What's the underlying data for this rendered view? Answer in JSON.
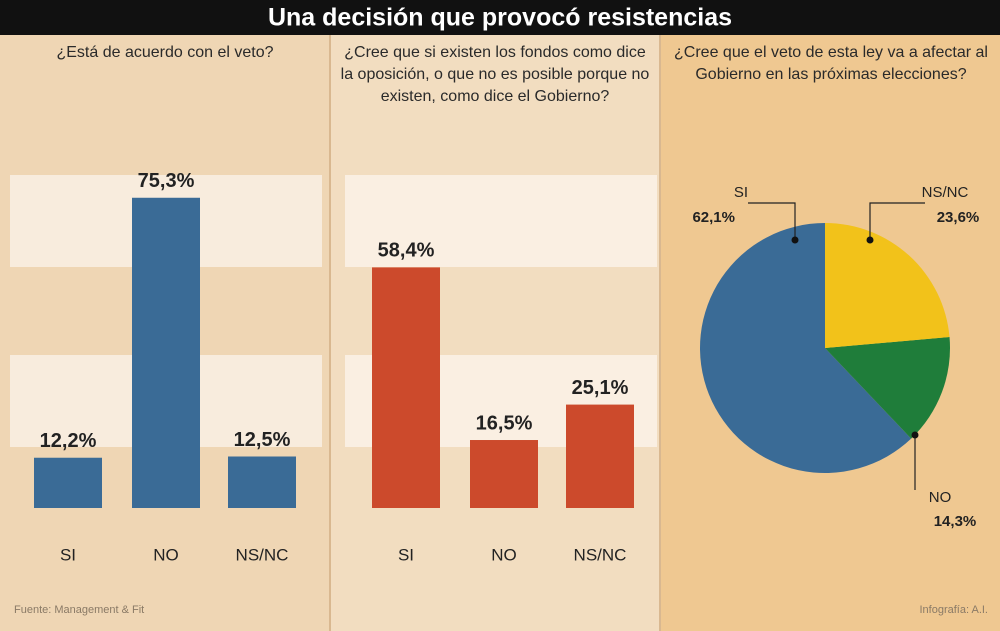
{
  "title": "Una decisión que provocó resistencias",
  "source": "Fuente: Management & Fit",
  "credit": "Infografía: A.I.",
  "chart_data": [
    {
      "type": "bar",
      "title": "¿Está de acuerdo con el veto?",
      "categories": [
        "SI",
        "NO",
        "NS/NC"
      ],
      "values": [
        12.2,
        75.3,
        12.5
      ],
      "value_labels": [
        "12,2%",
        "75,3%",
        "12,5%"
      ],
      "color": "#3a6b96"
    },
    {
      "type": "bar",
      "title": "¿Cree que si existen los fondos como dice la oposición, o que no es posible porque no existen, como dice el Gobierno?",
      "categories": [
        "SI",
        "NO",
        "NS/NC"
      ],
      "values": [
        58.4,
        16.5,
        25.1
      ],
      "value_labels": [
        "58,4%",
        "16,5%",
        "25,1%"
      ],
      "color": "#cc4a2c"
    },
    {
      "type": "pie",
      "title": "¿Cree que el veto de esta ley va a afectar al Gobierno en las próximas elecciones?",
      "categories": [
        "SI",
        "NO",
        "NS/NC"
      ],
      "values": [
        62.1,
        14.3,
        23.6
      ],
      "value_labels": [
        "62,1%",
        "14,3%",
        "23,6%"
      ],
      "colors": [
        "#3a6b96",
        "#1f7d3a",
        "#f2c21a"
      ]
    }
  ]
}
